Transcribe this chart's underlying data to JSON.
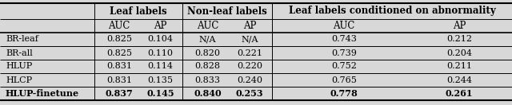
{
  "rows": [
    {
      "method": "BR-leaf",
      "leaf_auc": "0.825",
      "leaf_ap": "0.104",
      "nonleaf_auc": "N/A",
      "nonleaf_ap": "N/A",
      "cond_auc": "0.743",
      "cond_ap": "0.212",
      "bold": false
    },
    {
      "method": "BR-all",
      "leaf_auc": "0.825",
      "leaf_ap": "0.110",
      "nonleaf_auc": "0.820",
      "nonleaf_ap": "0.221",
      "cond_auc": "0.739",
      "cond_ap": "0.204",
      "bold": false
    },
    {
      "method": "HLUP",
      "leaf_auc": "0.831",
      "leaf_ap": "0.114",
      "nonleaf_auc": "0.828",
      "nonleaf_ap": "0.220",
      "cond_auc": "0.752",
      "cond_ap": "0.211",
      "bold": false
    },
    {
      "method": "HLCP",
      "leaf_auc": "0.831",
      "leaf_ap": "0.135",
      "nonleaf_auc": "0.833",
      "nonleaf_ap": "0.240",
      "cond_auc": "0.765",
      "cond_ap": "0.244",
      "bold": false
    },
    {
      "method": "HLUP-finetune",
      "leaf_auc": "0.837",
      "leaf_ap": "0.145",
      "nonleaf_auc": "0.840",
      "nonleaf_ap": "0.253",
      "cond_auc": "0.778",
      "cond_ap": "0.261",
      "bold": true
    }
  ],
  "group_headers": [
    "Leaf labels",
    "Non-leaf labels",
    "Leaf labels conditioned on abnormality"
  ],
  "group_header_fontsize": 8.5,
  "col_header_fontsize": 8.5,
  "cell_fontsize": 8.0,
  "method_fontsize": 8.0,
  "vline_color": "#555555",
  "hline_color": "#333333",
  "bg_light": "#e8e8e8",
  "bg_white": "#ffffff"
}
